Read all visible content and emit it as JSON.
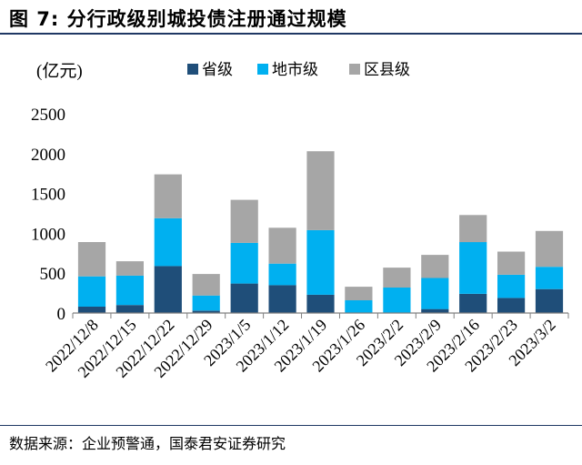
{
  "header": {
    "title": "图 7:  分行政级别城投债注册通过规模"
  },
  "footer": {
    "source": "数据来源：企业预警通，国泰君安证券研究"
  },
  "colors": {
    "province": "#1f4e79",
    "city": "#00b0f0",
    "county": "#a6a6a6",
    "axis": "#808080",
    "title_rule": "#1f3864"
  },
  "chart_data": {
    "type": "bar",
    "stacked": true,
    "title": "分行政级别城投债注册通过规模",
    "unit_label": "(亿元)",
    "ylim": [
      0,
      2500
    ],
    "yticks": [
      0,
      500,
      1000,
      1500,
      2000,
      2500
    ],
    "grid": false,
    "legend_position": "top",
    "categories": [
      "2022/12/8",
      "2022/12/15",
      "2022/12/22",
      "2022/12/29",
      "2023/1/5",
      "2023/1/12",
      "2023/1/19",
      "2023/1/26",
      "2023/2/2",
      "2023/2/9",
      "2023/2/16",
      "2023/2/23",
      "2023/3/2"
    ],
    "series": [
      {
        "name": "省级",
        "color": "#1f4e79",
        "values": [
          80,
          100,
          590,
          30,
          370,
          350,
          230,
          0,
          0,
          50,
          240,
          190,
          300
        ]
      },
      {
        "name": "地市级",
        "color": "#00b0f0",
        "values": [
          380,
          370,
          600,
          190,
          510,
          270,
          810,
          160,
          320,
          390,
          650,
          290,
          280
        ]
      },
      {
        "name": "区县级",
        "color": "#a6a6a6",
        "values": [
          430,
          180,
          550,
          270,
          540,
          450,
          990,
          170,
          250,
          290,
          340,
          290,
          450
        ]
      }
    ]
  }
}
